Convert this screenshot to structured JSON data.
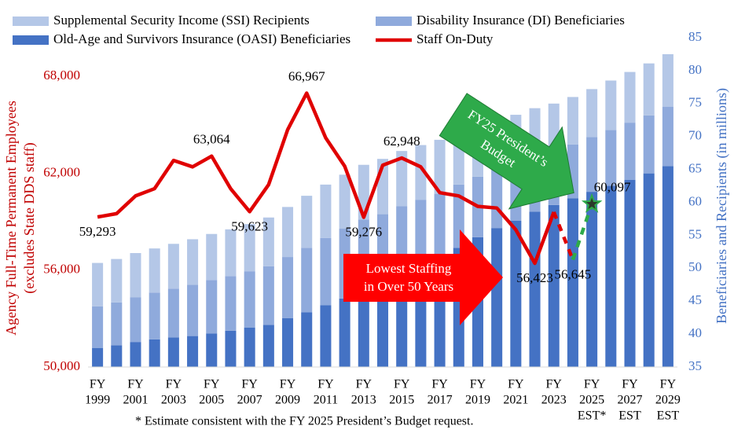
{
  "chart_data": {
    "type": "combo",
    "categories": [
      [
        "FY",
        "1999"
      ],
      null,
      [
        "FY",
        "2001"
      ],
      null,
      [
        "FY",
        "2003"
      ],
      null,
      [
        "FY",
        "2005"
      ],
      null,
      [
        "FY",
        "2007"
      ],
      null,
      [
        "FY",
        "2009"
      ],
      null,
      [
        "FY",
        "2011"
      ],
      null,
      [
        "FY",
        "2013"
      ],
      null,
      [
        "FY",
        "2015"
      ],
      null,
      [
        "FY",
        "2017"
      ],
      null,
      [
        "FY",
        "2019"
      ],
      null,
      [
        "FY",
        "2021"
      ],
      null,
      [
        "FY",
        "2023"
      ],
      null,
      [
        "FY",
        "2025",
        "EST*"
      ],
      null,
      [
        "FY",
        "2027",
        "EST"
      ],
      null,
      [
        "FY",
        "2029",
        "EST"
      ]
    ],
    "series": [
      {
        "name": "Supplemental Security Income (SSI) Recipients",
        "type": "bar",
        "axis": "y2",
        "color": "#b4c7e7",
        "values": [
          6.6,
          6.6,
          6.7,
          6.7,
          6.8,
          6.9,
          7.0,
          7.1,
          7.2,
          7.4,
          7.6,
          7.9,
          8.1,
          8.2,
          8.3,
          8.4,
          8.4,
          8.3,
          8.2,
          8.1,
          8.0,
          7.8,
          7.6,
          7.5,
          7.4,
          7.2,
          7.3,
          7.5,
          7.7,
          7.9,
          8.0
        ]
      },
      {
        "name": "Disability Insurance (DI) Beneficiaries",
        "type": "bar",
        "axis": "y2",
        "color": "#8faadc",
        "values": [
          6.3,
          6.5,
          6.8,
          7.1,
          7.4,
          7.8,
          8.1,
          8.3,
          8.5,
          8.9,
          9.3,
          9.8,
          10.2,
          10.6,
          10.8,
          10.6,
          10.4,
          10.0,
          9.7,
          9.6,
          9.2,
          8.9,
          8.5,
          8.2,
          8.0,
          8.2,
          8.3,
          8.5,
          8.7,
          8.8,
          9.0
        ]
      },
      {
        "name": "Old-Age and Survivors Insurance (OASI) Beneficiaries",
        "type": "bar",
        "axis": "y2",
        "color": "#4472c4",
        "values": [
          37.9,
          38.3,
          38.8,
          39.2,
          39.5,
          39.7,
          40.1,
          40.5,
          41.0,
          41.4,
          42.4,
          43.3,
          44.4,
          45.4,
          46.6,
          47.6,
          49.0,
          50.4,
          51.6,
          53.1,
          54.7,
          56.1,
          57.2,
          58.6,
          59.6,
          60.6,
          61.6,
          62.5,
          63.4,
          64.4,
          65.5
        ]
      },
      {
        "name": "Staff On-Duty",
        "type": "line",
        "color": "#e00000",
        "values": [
          59293,
          59500,
          60600,
          61050,
          62800,
          62400,
          63064,
          61050,
          59623,
          61300,
          64700,
          66967,
          64200,
          62440,
          59276,
          62500,
          62948,
          62400,
          60800,
          60600,
          59950,
          59850,
          58500,
          56423,
          59600,
          null,
          null,
          null,
          null,
          null,
          null
        ],
        "value_labels": [
          "59,293",
          null,
          null,
          null,
          null,
          null,
          "63,064",
          null,
          "59,623",
          null,
          null,
          "66,967",
          null,
          null,
          "59,276",
          null,
          "62,948",
          null,
          null,
          null,
          null,
          null,
          null,
          "56,423",
          null,
          null,
          null,
          null,
          null,
          null,
          null
        ]
      },
      {
        "type": "line",
        "dashed": true,
        "color": "#e00000",
        "values": [
          null,
          null,
          null,
          null,
          null,
          null,
          null,
          null,
          null,
          null,
          null,
          null,
          null,
          null,
          null,
          null,
          null,
          null,
          null,
          null,
          null,
          null,
          null,
          null,
          59600,
          56645,
          null,
          null,
          null,
          null,
          null
        ],
        "value_labels": [
          null,
          null,
          null,
          null,
          null,
          null,
          null,
          null,
          null,
          null,
          null,
          null,
          null,
          null,
          null,
          null,
          null,
          null,
          null,
          null,
          null,
          null,
          null,
          null,
          null,
          "56,645",
          null,
          null,
          null,
          null,
          null
        ]
      },
      {
        "type": "line",
        "dashed": true,
        "color": "#2eaa4a",
        "marker": "star",
        "values": [
          null,
          null,
          null,
          null,
          null,
          null,
          null,
          null,
          null,
          null,
          null,
          null,
          null,
          null,
          null,
          null,
          null,
          null,
          null,
          null,
          null,
          null,
          null,
          null,
          null,
          56645,
          60097,
          null,
          null,
          null,
          null
        ],
        "value_labels": [
          null,
          null,
          null,
          null,
          null,
          null,
          null,
          null,
          null,
          null,
          null,
          null,
          null,
          null,
          null,
          null,
          null,
          null,
          null,
          null,
          null,
          null,
          null,
          null,
          null,
          null,
          "60,097",
          null,
          null,
          null,
          null
        ]
      }
    ],
    "ylim": [
      50000,
      70400
    ],
    "yticks": [
      {
        "value": 50000,
        "label": "50,000"
      },
      {
        "value": 56000,
        "label": "56,000"
      },
      {
        "value": 62000,
        "label": "62,000"
      },
      {
        "value": 68000,
        "label": "68,000"
      }
    ],
    "y_color": "#c00000",
    "y_label": [
      "Agency Full-Time Permanent Employees",
      "(excludes State DDS staff)"
    ],
    "y2lim": [
      35,
      85
    ],
    "y2ticks": [
      35,
      40,
      45,
      50,
      55,
      60,
      65,
      70,
      75,
      80,
      85
    ],
    "y2_color": "#4472c4",
    "y2_label": "Beneficiaries and Recipients  (in millions)",
    "annotations": [
      [
        "Lowest Staffing",
        "in Over 50 Years"
      ],
      [
        "FY25 President’s",
        "Budget"
      ]
    ],
    "footnote": "* Estimate consistent with the FY 2025 President’s Budget request."
  }
}
